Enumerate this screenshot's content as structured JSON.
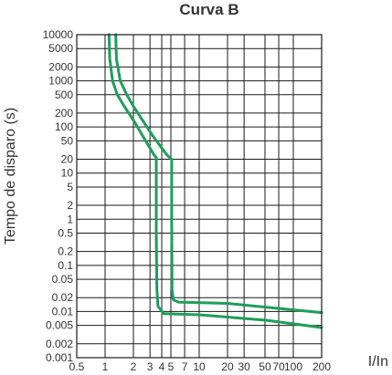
{
  "chart_data": {
    "type": "line",
    "title": "Curva B",
    "xlabel": "I/In",
    "ylabel": "Tempo de disparo (s)",
    "x_scale": "log",
    "y_scale": "log",
    "xlim": [
      0.5,
      200
    ],
    "ylim": [
      0.001,
      10000
    ],
    "grid": true,
    "curve_color": "#1e9e5a",
    "x_ticks": [
      {
        "value": 0.5,
        "label": "0.5"
      },
      {
        "value": 1,
        "label": "1"
      },
      {
        "value": 2,
        "label": "2"
      },
      {
        "value": 3,
        "label": "3"
      },
      {
        "value": 4,
        "label": "4"
      },
      {
        "value": 5,
        "label": "5"
      },
      {
        "value": 7,
        "label": "7"
      },
      {
        "value": 10,
        "label": "10"
      },
      {
        "value": 20,
        "label": "20"
      },
      {
        "value": 30,
        "label": "30"
      },
      {
        "value": 50,
        "label": "50"
      },
      {
        "value": 70,
        "label": "70"
      },
      {
        "value": 100,
        "label": "100"
      },
      {
        "value": 200,
        "label": "200"
      }
    ],
    "y_ticks": [
      {
        "value": 10000,
        "label": "10000"
      },
      {
        "value": 5000,
        "label": "5000"
      },
      {
        "value": 2000,
        "label": "2000"
      },
      {
        "value": 1000,
        "label": "1000"
      },
      {
        "value": 500,
        "label": "500"
      },
      {
        "value": 200,
        "label": "200"
      },
      {
        "value": 100,
        "label": "100"
      },
      {
        "value": 50,
        "label": "50"
      },
      {
        "value": 20,
        "label": "20"
      },
      {
        "value": 10,
        "label": "10"
      },
      {
        "value": 5,
        "label": "5"
      },
      {
        "value": 2,
        "label": "2"
      },
      {
        "value": 1,
        "label": "1"
      },
      {
        "value": 0.5,
        "label": "0.5"
      },
      {
        "value": 0.2,
        "label": "0.2"
      },
      {
        "value": 0.1,
        "label": "0.1"
      },
      {
        "value": 0.05,
        "label": "0.05"
      },
      {
        "value": 0.02,
        "label": "0.02"
      },
      {
        "value": 0.01,
        "label": "0.01"
      },
      {
        "value": 0.005,
        "label": "0.005"
      },
      {
        "value": 0.002,
        "label": "0.002"
      },
      {
        "value": 0.001,
        "label": "0.001"
      }
    ],
    "series": [
      {
        "points": [
          [
            1.1,
            10000
          ],
          [
            1.12,
            3000
          ],
          [
            1.2,
            1000
          ],
          [
            1.35,
            500
          ],
          [
            1.6,
            280
          ],
          [
            2.0,
            140
          ],
          [
            2.5,
            65
          ],
          [
            3.0,
            35
          ],
          [
            3.3,
            25
          ],
          [
            3.5,
            22
          ],
          [
            3.5,
            0.5
          ],
          [
            3.55,
            0.03
          ],
          [
            3.65,
            0.013
          ],
          [
            4.2,
            0.009
          ],
          [
            10,
            0.0085
          ],
          [
            50,
            0.0065
          ],
          [
            200,
            0.0045
          ]
        ]
      },
      {
        "points": [
          [
            1.3,
            10000
          ],
          [
            1.32,
            3000
          ],
          [
            1.45,
            1000
          ],
          [
            1.7,
            500
          ],
          [
            2.0,
            280
          ],
          [
            2.5,
            140
          ],
          [
            3.2,
            65
          ],
          [
            4.0,
            35
          ],
          [
            4.6,
            24
          ],
          [
            5.1,
            20
          ],
          [
            5.1,
            1
          ],
          [
            5.15,
            0.03
          ],
          [
            5.3,
            0.018
          ],
          [
            6.0,
            0.016
          ],
          [
            20,
            0.015
          ],
          [
            60,
            0.012
          ],
          [
            200,
            0.0095
          ]
        ]
      }
    ]
  }
}
